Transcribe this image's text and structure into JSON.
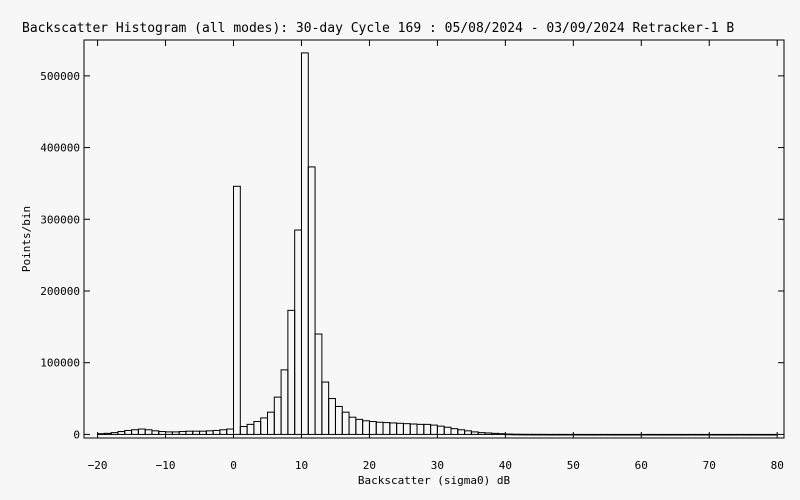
{
  "chart_data": {
    "type": "bar",
    "title": "Backscatter Histogram (all modes): 30-day Cycle 169 : 05/08/2024 - 03/09/2024 Retracker-1 B",
    "xlabel": "Backscatter (sigma0) dB",
    "ylabel": "Points/bin",
    "xlim": [
      -22,
      81
    ],
    "ylim": [
      -5000,
      550000
    ],
    "xticks": [
      -20,
      -10,
      0,
      10,
      20,
      30,
      40,
      50,
      60,
      70,
      80
    ],
    "xtick_labels": [
      "−20",
      "−10",
      "0",
      "10",
      "20",
      "30",
      "40",
      "50",
      "60",
      "70",
      "80"
    ],
    "yticks": [
      0,
      100000,
      200000,
      300000,
      400000,
      500000
    ],
    "ytick_labels": [
      "0",
      "100000",
      "200000",
      "300000",
      "400000",
      "500000"
    ],
    "bin_width": 1,
    "bins": [
      {
        "x": -20,
        "y": 1000
      },
      {
        "x": -19,
        "y": 1500
      },
      {
        "x": -18,
        "y": 2500
      },
      {
        "x": -17,
        "y": 4000
      },
      {
        "x": -16,
        "y": 5500
      },
      {
        "x": -15,
        "y": 6500
      },
      {
        "x": -14,
        "y": 7500
      },
      {
        "x": -13,
        "y": 6500
      },
      {
        "x": -12,
        "y": 5000
      },
      {
        "x": -11,
        "y": 4000
      },
      {
        "x": -10,
        "y": 3500
      },
      {
        "x": -9,
        "y": 3500
      },
      {
        "x": -8,
        "y": 4000
      },
      {
        "x": -7,
        "y": 4500
      },
      {
        "x": -6,
        "y": 4500
      },
      {
        "x": -5,
        "y": 4500
      },
      {
        "x": -4,
        "y": 5000
      },
      {
        "x": -3,
        "y": 5500
      },
      {
        "x": -2,
        "y": 6500
      },
      {
        "x": -1,
        "y": 7500
      },
      {
        "x": 0,
        "y": 346000
      },
      {
        "x": 1,
        "y": 11000
      },
      {
        "x": 2,
        "y": 14000
      },
      {
        "x": 3,
        "y": 18000
      },
      {
        "x": 4,
        "y": 23000
      },
      {
        "x": 5,
        "y": 31000
      },
      {
        "x": 6,
        "y": 52000
      },
      {
        "x": 7,
        "y": 90000
      },
      {
        "x": 8,
        "y": 173000
      },
      {
        "x": 9,
        "y": 285000
      },
      {
        "x": 10,
        "y": 532000
      },
      {
        "x": 11,
        "y": 373000
      },
      {
        "x": 12,
        "y": 140000
      },
      {
        "x": 13,
        "y": 73000
      },
      {
        "x": 14,
        "y": 50000
      },
      {
        "x": 15,
        "y": 39000
      },
      {
        "x": 16,
        "y": 31000
      },
      {
        "x": 17,
        "y": 24000
      },
      {
        "x": 18,
        "y": 21000
      },
      {
        "x": 19,
        "y": 19000
      },
      {
        "x": 20,
        "y": 18000
      },
      {
        "x": 21,
        "y": 17000
      },
      {
        "x": 22,
        "y": 16500
      },
      {
        "x": 23,
        "y": 16000
      },
      {
        "x": 24,
        "y": 15500
      },
      {
        "x": 25,
        "y": 15000
      },
      {
        "x": 26,
        "y": 14500
      },
      {
        "x": 27,
        "y": 14000
      },
      {
        "x": 28,
        "y": 14000
      },
      {
        "x": 29,
        "y": 13000
      },
      {
        "x": 30,
        "y": 11500
      },
      {
        "x": 31,
        "y": 10000
      },
      {
        "x": 32,
        "y": 8000
      },
      {
        "x": 33,
        "y": 6500
      },
      {
        "x": 34,
        "y": 5000
      },
      {
        "x": 35,
        "y": 3500
      },
      {
        "x": 36,
        "y": 2500
      },
      {
        "x": 37,
        "y": 2000
      },
      {
        "x": 38,
        "y": 1500
      },
      {
        "x": 39,
        "y": 1000
      },
      {
        "x": 40,
        "y": 500
      },
      {
        "x": 41,
        "y": 300
      },
      {
        "x": 42,
        "y": 200
      },
      {
        "x": 43,
        "y": 150
      },
      {
        "x": 44,
        "y": 100
      },
      {
        "x": 45,
        "y": 100
      },
      {
        "x": 46,
        "y": 50
      },
      {
        "x": 47,
        "y": 50
      },
      {
        "x": 48,
        "y": 50
      },
      {
        "x": 49,
        "y": 50
      },
      {
        "x": 50,
        "y": 50
      },
      {
        "x": 51,
        "y": 0
      },
      {
        "x": 52,
        "y": 0
      },
      {
        "x": 53,
        "y": 0
      },
      {
        "x": 54,
        "y": 0
      },
      {
        "x": 55,
        "y": 0
      },
      {
        "x": 56,
        "y": 0
      },
      {
        "x": 57,
        "y": 0
      },
      {
        "x": 58,
        "y": 0
      },
      {
        "x": 59,
        "y": 0
      },
      {
        "x": 60,
        "y": 0
      },
      {
        "x": 61,
        "y": 0
      },
      {
        "x": 62,
        "y": 0
      },
      {
        "x": 63,
        "y": 0
      },
      {
        "x": 64,
        "y": 0
      },
      {
        "x": 65,
        "y": 0
      },
      {
        "x": 66,
        "y": 0
      },
      {
        "x": 67,
        "y": 0
      },
      {
        "x": 68,
        "y": 0
      },
      {
        "x": 69,
        "y": 0
      },
      {
        "x": 70,
        "y": 0
      },
      {
        "x": 71,
        "y": 0
      },
      {
        "x": 72,
        "y": 0
      },
      {
        "x": 73,
        "y": 0
      },
      {
        "x": 74,
        "y": 0
      },
      {
        "x": 75,
        "y": 0
      },
      {
        "x": 76,
        "y": 0
      },
      {
        "x": 77,
        "y": 0
      },
      {
        "x": 78,
        "y": 0
      },
      {
        "x": 79,
        "y": 0
      }
    ],
    "grid": false,
    "legend": "none",
    "colors": {
      "background": "#f7f7f7",
      "line": "#000000"
    }
  }
}
